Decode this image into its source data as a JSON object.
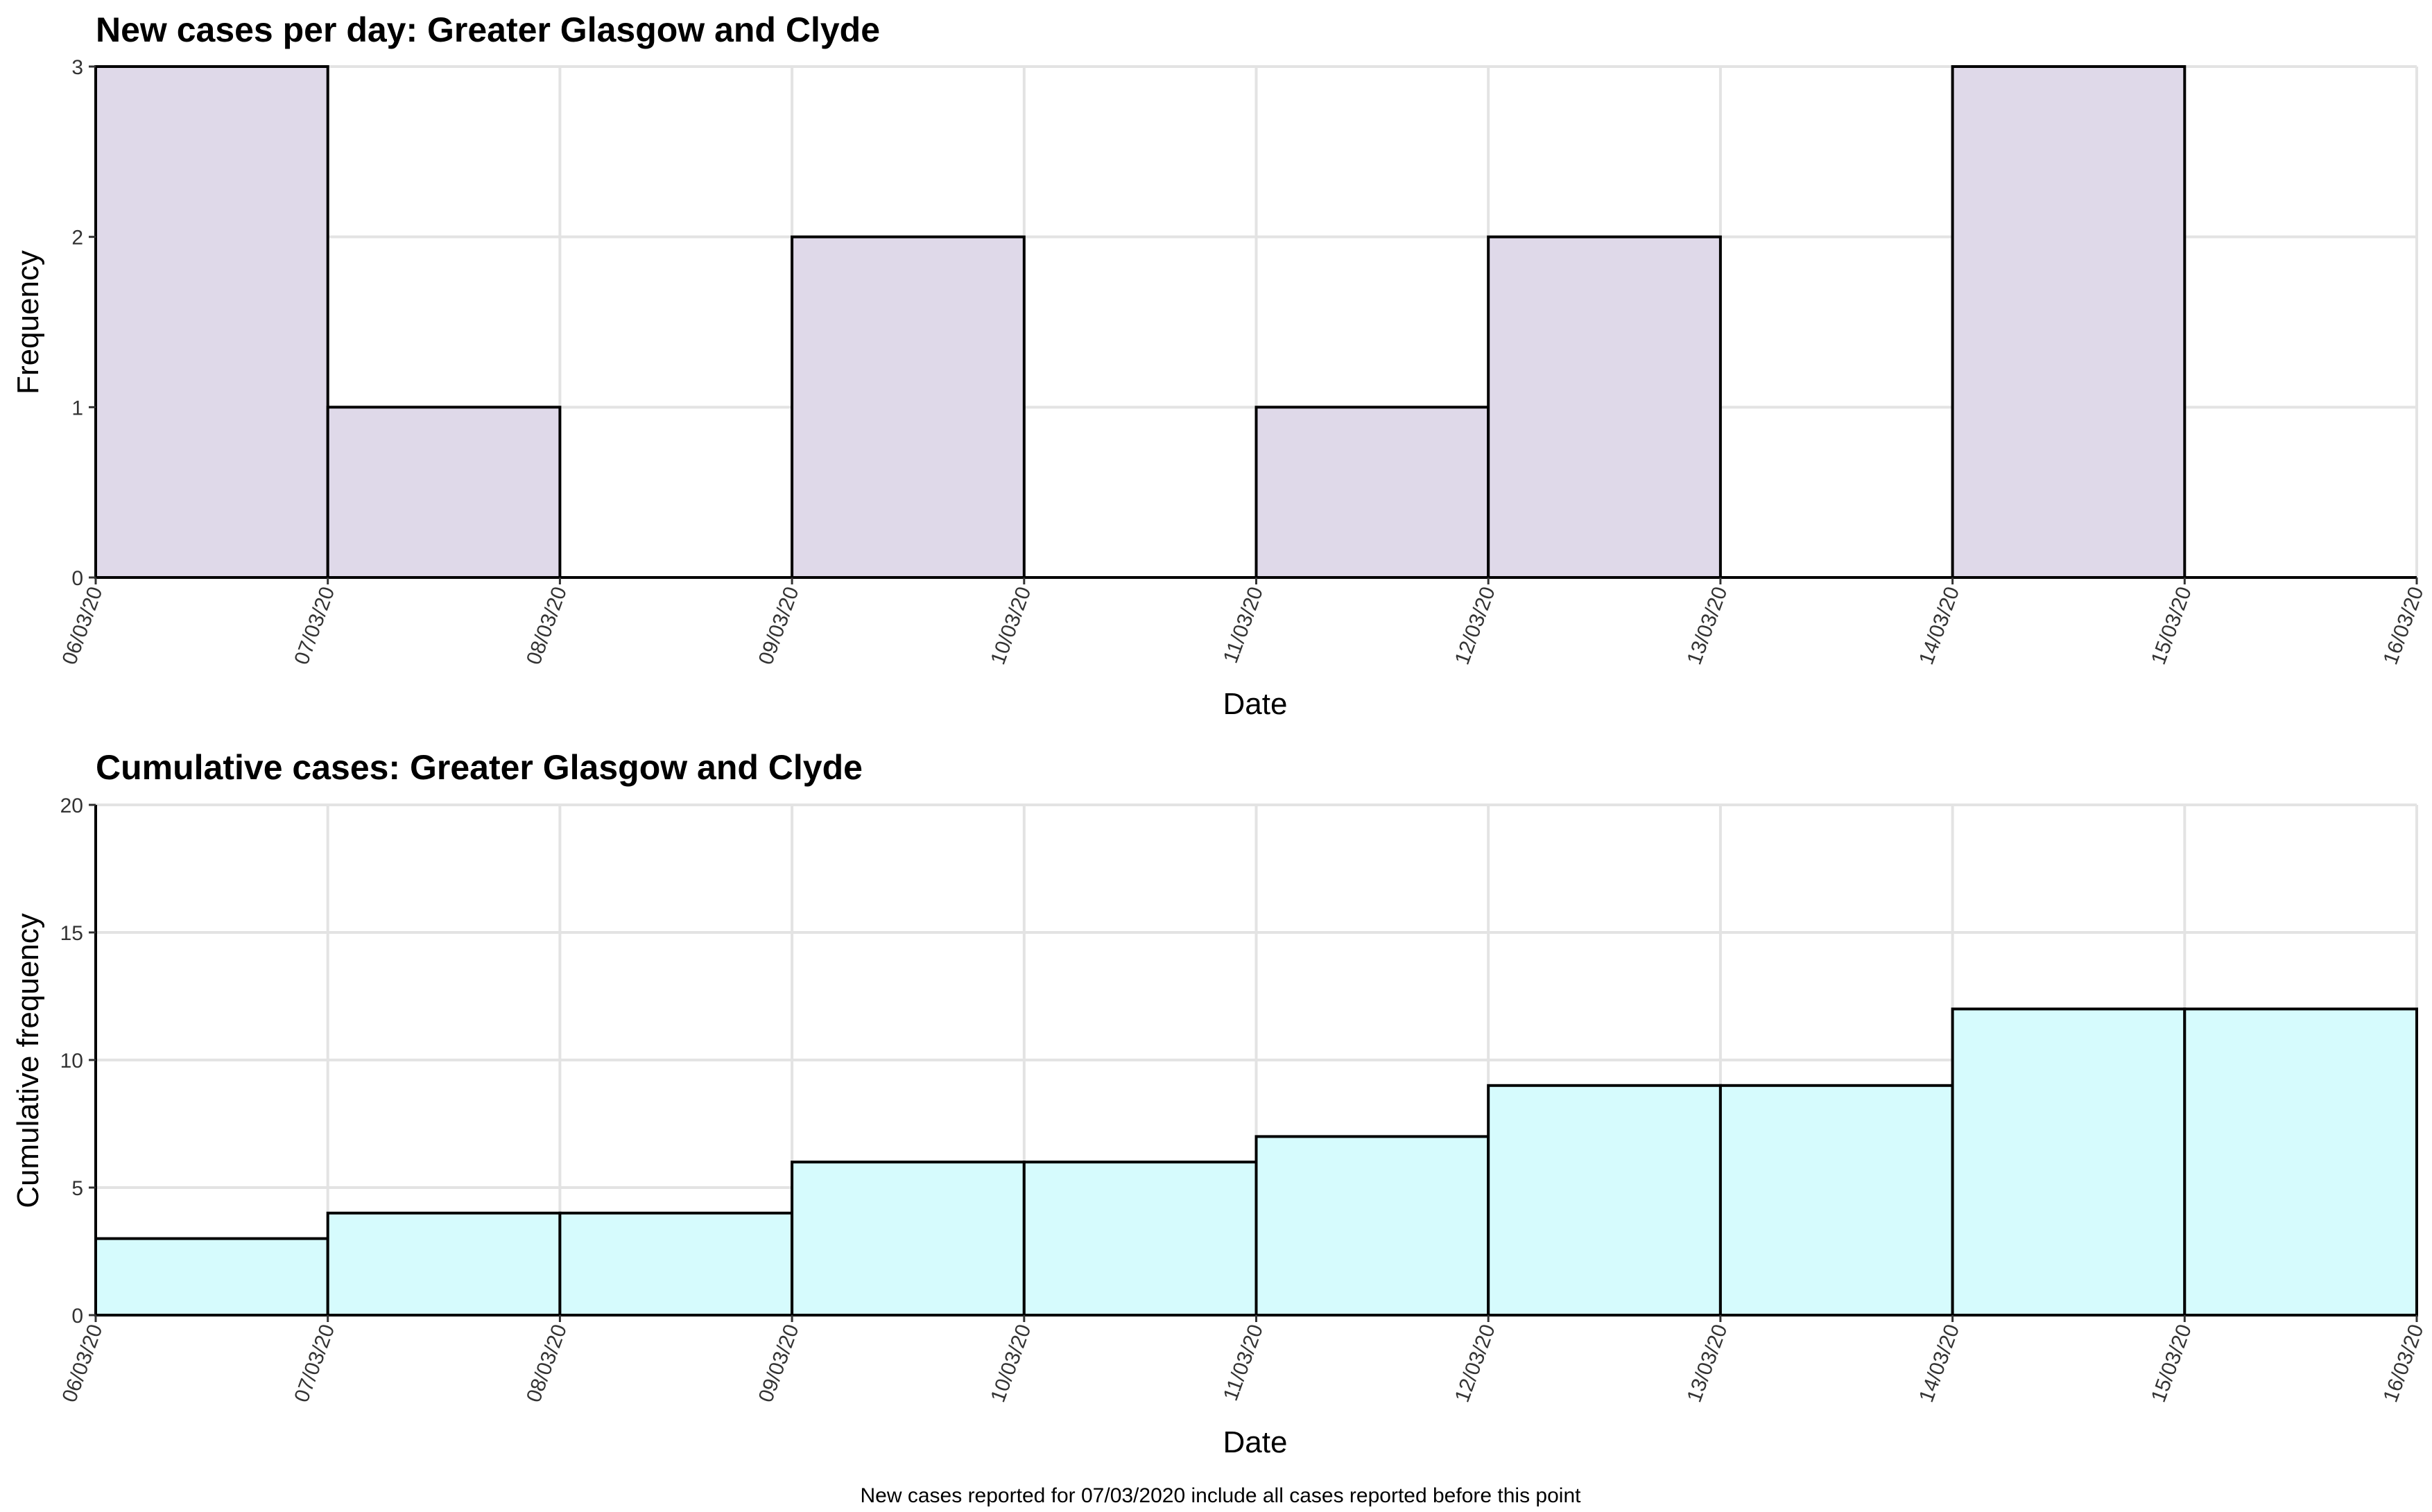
{
  "colors": {
    "daily_fill": "#dfd9e9",
    "cumulative_fill": "#d6fbfd",
    "bar_outline": "#000000",
    "grid": "#e3e3e3"
  },
  "chart_data": [
    {
      "type": "bar",
      "title": "New cases per day: Greater Glasgow and Clyde",
      "xlabel": "Date",
      "ylabel": "Frequency",
      "categories": [
        "06/03/20",
        "07/03/20",
        "08/03/20",
        "09/03/20",
        "10/03/20",
        "11/03/20",
        "12/03/20",
        "13/03/20",
        "14/03/20",
        "15/03/20"
      ],
      "x_tick_labels": [
        "06/03/20",
        "07/03/20",
        "08/03/20",
        "09/03/20",
        "10/03/20",
        "11/03/20",
        "12/03/20",
        "13/03/20",
        "14/03/20",
        "15/03/20",
        "16/03/20"
      ],
      "values": [
        3,
        1,
        0,
        2,
        0,
        1,
        2,
        0,
        3,
        0
      ],
      "ylim": [
        0,
        3
      ],
      "y_ticks": [
        0,
        1,
        2,
        3
      ],
      "grid": true
    },
    {
      "type": "bar",
      "title": "Cumulative cases: Greater Glasgow and Clyde",
      "xlabel": "Date",
      "ylabel": "Cumulative frequency",
      "categories": [
        "06/03/20",
        "07/03/20",
        "08/03/20",
        "09/03/20",
        "10/03/20",
        "11/03/20",
        "12/03/20",
        "13/03/20",
        "14/03/20",
        "15/03/20"
      ],
      "x_tick_labels": [
        "06/03/20",
        "07/03/20",
        "08/03/20",
        "09/03/20",
        "10/03/20",
        "11/03/20",
        "12/03/20",
        "13/03/20",
        "14/03/20",
        "15/03/20",
        "16/03/20"
      ],
      "values": [
        3,
        4,
        4,
        6,
        6,
        7,
        9,
        9,
        12,
        12
      ],
      "ylim": [
        0,
        20
      ],
      "y_ticks": [
        0,
        5,
        10,
        15,
        20
      ],
      "grid": true
    }
  ],
  "caption": "New cases reported for 07/03/2020 include all cases reported before this point"
}
